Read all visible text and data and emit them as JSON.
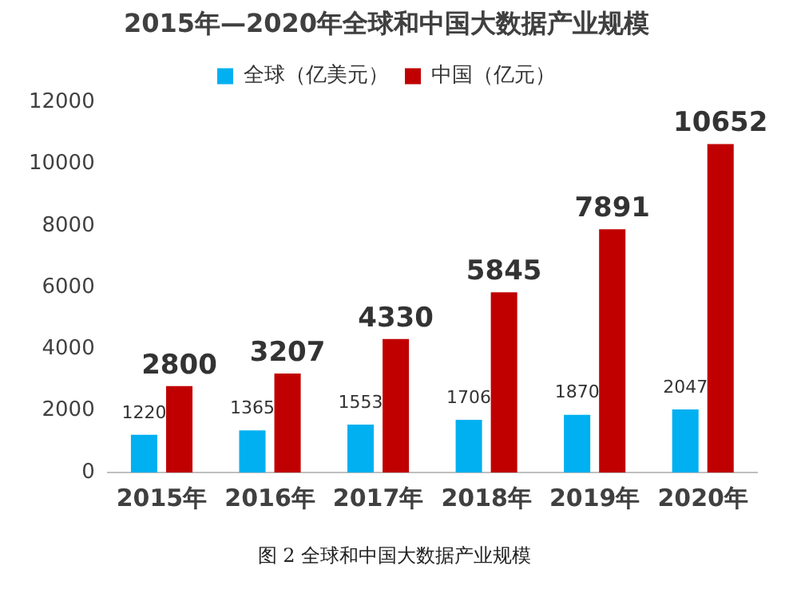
{
  "chart_data": {
    "type": "bar",
    "title": "2015年—2020年全球和中国大数据产业规模",
    "categories": [
      "2015年",
      "2016年",
      "2017年",
      "2018年",
      "2019年",
      "2020年"
    ],
    "series": [
      {
        "name": "全球（亿美元）",
        "color": "#00b0f0",
        "values": [
          1220,
          1365,
          1553,
          1706,
          1870,
          2047
        ]
      },
      {
        "name": "中国（亿元）",
        "color": "#c00000",
        "values": [
          2800,
          3207,
          4330,
          5845,
          7891,
          10652
        ]
      }
    ],
    "ylim": [
      0,
      12000
    ],
    "yticks": [
      0,
      2000,
      4000,
      6000,
      8000,
      10000,
      12000
    ],
    "grid": false,
    "legend": "top",
    "data_labels": true,
    "annotations": [
      "图 2 全球和中国大数据产业规模"
    ]
  }
}
